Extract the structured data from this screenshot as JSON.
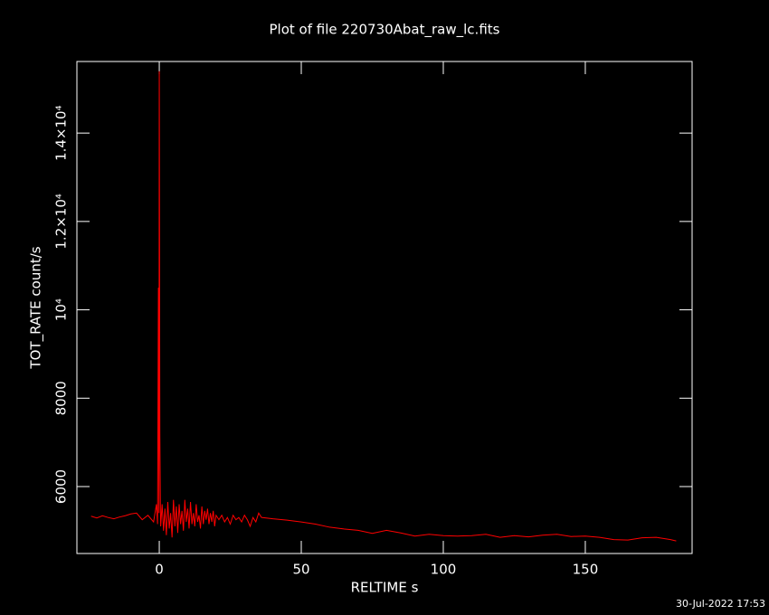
{
  "chart_data": {
    "type": "line",
    "title": "Plot of file 220730Abat_raw_lc.fits",
    "x_label": "RELTIME  s",
    "y_label": "TOT_RATE  count/s",
    "footer": "30-Jul-2022 17:53",
    "background": "#000000",
    "axis_color": "#ffffff",
    "xlim": [
      -29,
      187.6
    ],
    "ylim": [
      4485,
      15620
    ],
    "xticks": [
      0,
      50,
      100,
      150
    ],
    "yticks": [
      6000,
      8000,
      {
        "value": 10000,
        "label": "10⁴"
      },
      {
        "value": 12000,
        "label": "1.2×10⁴"
      },
      {
        "value": 14000,
        "label": "1.4×10⁴"
      }
    ],
    "series": [
      {
        "color": "#ff0000",
        "x": [
          -24,
          -22,
          -20,
          -18,
          -16,
          -14,
          -12,
          -10,
          -8,
          -6,
          -4,
          -2,
          -1,
          -0.6,
          -0.3,
          -0.1,
          0,
          0.2,
          0.4,
          0.5,
          1,
          1.5,
          2,
          2.5,
          3,
          3.5,
          4,
          4.5,
          5,
          5.5,
          6,
          6.5,
          7,
          7.5,
          8,
          8.5,
          9,
          9.5,
          10,
          10.5,
          11,
          11.5,
          12,
          12.5,
          13,
          13.5,
          14,
          14.5,
          15,
          15.5,
          16,
          16.5,
          17,
          17.5,
          18,
          18.5,
          19,
          19.5,
          20,
          21,
          22,
          23,
          24,
          25,
          26,
          27,
          28,
          29,
          30,
          31,
          32,
          33,
          34,
          35,
          36,
          40,
          45,
          50,
          55,
          60,
          65,
          70,
          75,
          80,
          85,
          90,
          95,
          100,
          105,
          110,
          115,
          120,
          125,
          130,
          135,
          140,
          145,
          150,
          155,
          160,
          165,
          170,
          175,
          180,
          182
        ],
        "values": [
          5330,
          5290,
          5340,
          5300,
          5270,
          5310,
          5340,
          5380,
          5400,
          5250,
          5350,
          5200,
          5600,
          5150,
          10500,
          5400,
          15400,
          7200,
          5500,
          5100,
          5600,
          5000,
          5500,
          4900,
          5650,
          5050,
          5400,
          4850,
          5700,
          5100,
          5550,
          4950,
          5600,
          5150,
          5450,
          5000,
          5700,
          5200,
          5500,
          5050,
          5650,
          5150,
          5400,
          5100,
          5600,
          5200,
          5350,
          5050,
          5550,
          5150,
          5450,
          5250,
          5500,
          5150,
          5400,
          5200,
          5450,
          5100,
          5350,
          5250,
          5350,
          5200,
          5300,
          5150,
          5350,
          5250,
          5300,
          5200,
          5350,
          5250,
          5100,
          5300,
          5200,
          5400,
          5300,
          5270,
          5240,
          5200,
          5150,
          5080,
          5040,
          5010,
          4940,
          5010,
          4950,
          4880,
          4920,
          4890,
          4880,
          4890,
          4920,
          4850,
          4890,
          4860,
          4900,
          4920,
          4870,
          4880,
          4850,
          4800,
          4790,
          4840,
          4850,
          4800,
          4770
        ]
      }
    ]
  }
}
